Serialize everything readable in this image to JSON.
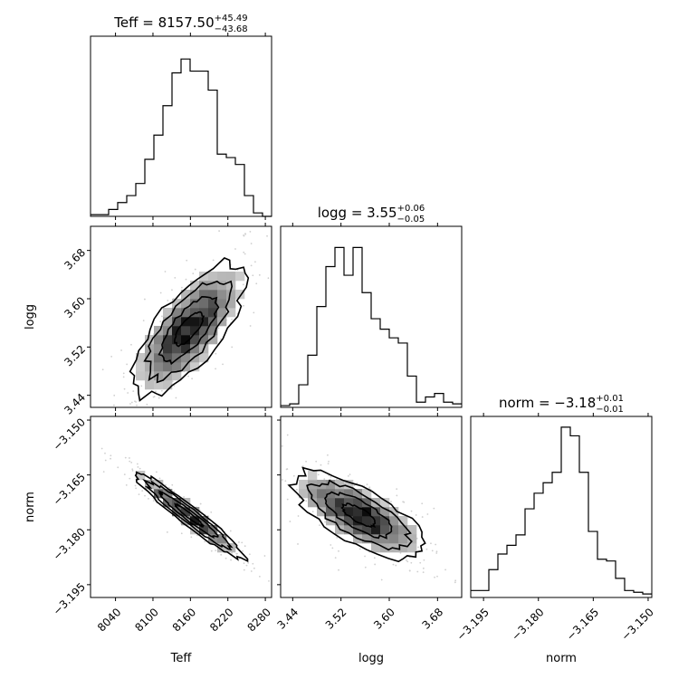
{
  "chart_data": [
    {
      "type": "histogram",
      "panel": "Teff-hist",
      "title": {
        "main": "Teff = 8157.50",
        "sup": "+45.49",
        "sub": "−43.68"
      },
      "x": "Teff",
      "xlim": [
        8000,
        8290
      ],
      "bin_edges": [
        8000,
        8014.5,
        8029,
        8043.5,
        8058,
        8072.5,
        8087,
        8101.5,
        8116,
        8130.5,
        8145,
        8159.5,
        8174,
        8188.5,
        8203,
        8217.5,
        8232,
        8246.5,
        8261,
        8275.5,
        8290
      ],
      "counts": [
        0.01,
        0.01,
        0.04,
        0.08,
        0.12,
        0.19,
        0.33,
        0.47,
        0.64,
        0.83,
        0.91,
        0.84,
        0.84,
        0.73,
        0.36,
        0.34,
        0.3,
        0.12,
        0.02,
        0.0
      ]
    },
    {
      "type": "histogram",
      "panel": "logg-hist",
      "title": {
        "main": "logg = 3.55",
        "sup": "+0.06",
        "sub": "−0.05"
      },
      "x": "logg",
      "xlim": [
        3.42,
        3.72
      ],
      "bin_edges": [
        3.42,
        3.435,
        3.45,
        3.465,
        3.48,
        3.495,
        3.51,
        3.525,
        3.54,
        3.555,
        3.57,
        3.585,
        3.6,
        3.615,
        3.63,
        3.645,
        3.66,
        3.675,
        3.69,
        3.705,
        3.72
      ],
      "counts": [
        0.01,
        0.02,
        0.13,
        0.3,
        0.58,
        0.81,
        0.92,
        0.76,
        0.92,
        0.66,
        0.51,
        0.45,
        0.4,
        0.37,
        0.18,
        0.03,
        0.06,
        0.08,
        0.03,
        0.02
      ]
    },
    {
      "type": "histogram",
      "panel": "norm-hist",
      "title": {
        "main": "norm = −3.18",
        "sup": "+0.01",
        "sub": "−0.01"
      },
      "x": "norm",
      "xlim": [
        -3.1985,
        -3.149
      ],
      "bin_edges": [
        -3.1985,
        -3.196025,
        -3.19355,
        -3.191075,
        -3.1886,
        -3.186125,
        -3.18365,
        -3.181175,
        -3.1787,
        -3.176225,
        -3.17375,
        -3.171275,
        -3.1688,
        -3.166325,
        -3.16385,
        -3.161375,
        -3.1589,
        -3.156425,
        -3.15395,
        -3.151475,
        -3.149
      ],
      "counts": [
        0.04,
        0.04,
        0.16,
        0.25,
        0.3,
        0.36,
        0.51,
        0.6,
        0.66,
        0.72,
        0.98,
        0.93,
        0.72,
        0.38,
        0.22,
        0.21,
        0.11,
        0.04,
        0.03,
        0.02
      ]
    },
    {
      "type": "heatmap",
      "panel": "logg-vs-Teff",
      "x": "Teff",
      "y": "logg",
      "xlim": [
        8000,
        8290
      ],
      "ylim": [
        3.42,
        3.72
      ],
      "xticks": [
        "8040",
        "8100",
        "8160",
        "8220",
        "8280"
      ],
      "yticks": [
        "3.44",
        "3.52",
        "3.60",
        "3.68"
      ],
      "ylabel": "logg",
      "center": [
        8157.5,
        3.55
      ],
      "sigma": [
        44.5,
        0.055
      ],
      "correlation": 0.72
    },
    {
      "type": "heatmap",
      "panel": "norm-vs-Teff",
      "x": "Teff",
      "y": "norm",
      "xlim": [
        8000,
        8290
      ],
      "ylim": [
        -3.1985,
        -3.149
      ],
      "xticks": [
        "8040",
        "8100",
        "8160",
        "8220",
        "8280"
      ],
      "yticks": [
        "−3.150",
        "−3.165",
        "−3.180",
        "−3.195"
      ],
      "xlabel": "Teff",
      "ylabel": "norm",
      "center": [
        8157.5,
        -3.176
      ],
      "sigma": [
        44.5,
        0.006
      ],
      "correlation": -0.96
    },
    {
      "type": "heatmap",
      "panel": "norm-vs-logg",
      "x": "logg",
      "y": "norm",
      "xlim": [
        3.42,
        3.72
      ],
      "ylim": [
        -3.1985,
        -3.149
      ],
      "xticks": [
        "3.44",
        "3.52",
        "3.60",
        "3.68"
      ],
      "xlabel": "logg",
      "center": [
        3.55,
        -3.176
      ],
      "sigma": [
        0.055,
        0.006
      ],
      "correlation": -0.72
    },
    {
      "type": "axis",
      "panel": "norm-axis",
      "xticks": [
        "−3.195",
        "−3.180",
        "−3.165",
        "−3.150"
      ],
      "xlabel": "norm"
    }
  ]
}
